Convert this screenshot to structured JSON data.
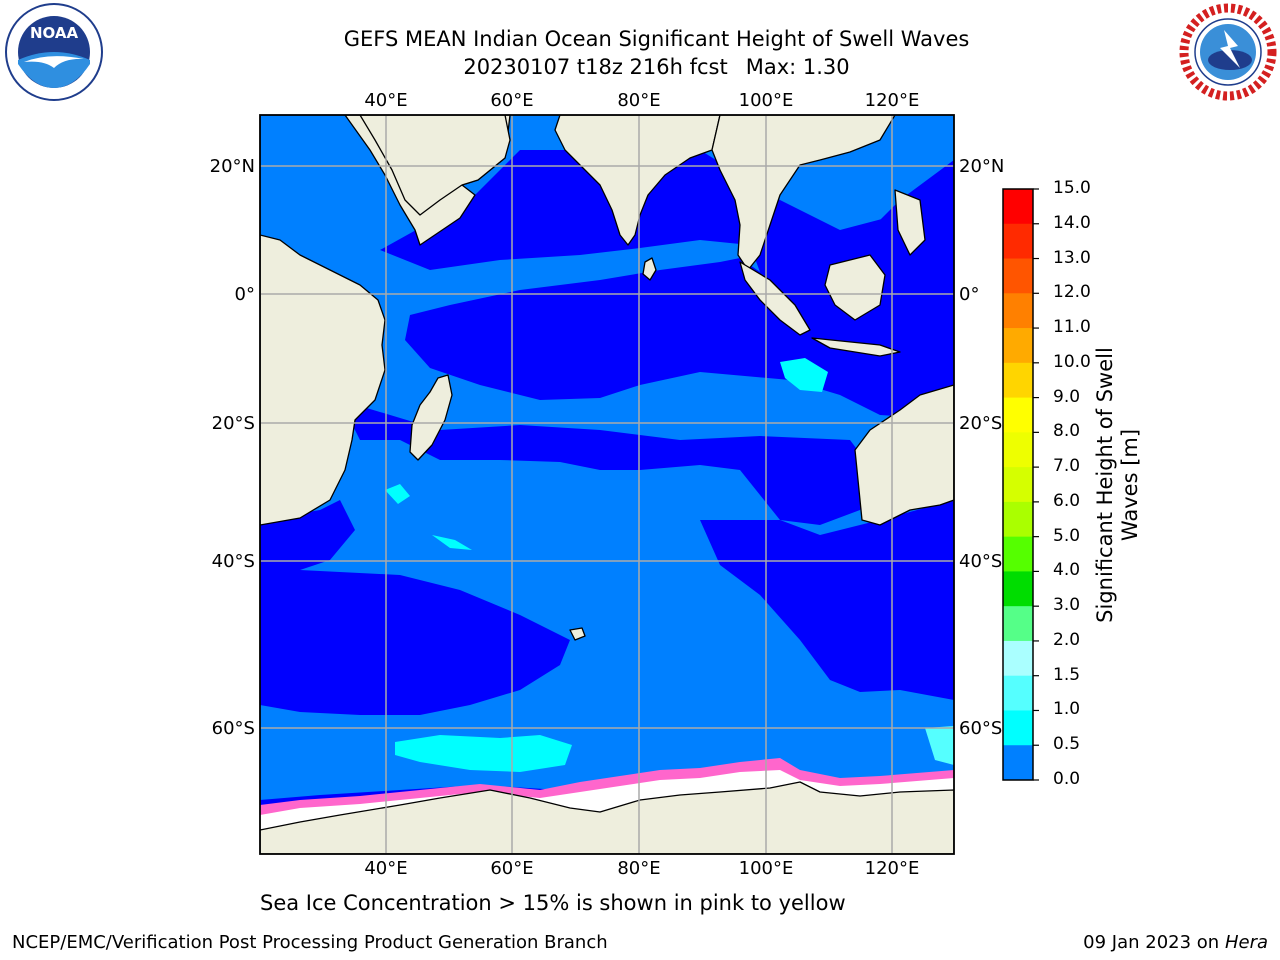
{
  "title": {
    "line1": "GEFS MEAN Indian Ocean Significant Height of Swell Waves",
    "line2": "20230107 t18z 216h fcst",
    "max_label": "Max: 1.30"
  },
  "caption": "Sea Ice Concentration > 15% is shown in pink to yellow",
  "footer": {
    "left": "NCEP/EMC/Verification Post Processing Product Generation Branch",
    "date": "09 Jan 2023 on",
    "host": "Hera"
  },
  "logos": {
    "left": {
      "icon": "noaa-logo",
      "text": "NOAA"
    },
    "right": {
      "icon": "nws-logo"
    }
  },
  "map": {
    "lon_range": [
      20,
      130
    ],
    "lat_range": [
      -77,
      28
    ],
    "lon_ticks": [
      "40°E",
      "60°E",
      "80°E",
      "100°E",
      "120°E"
    ],
    "lat_ticks": [
      "20°N",
      "0°",
      "20°S",
      "40°S",
      "60°S"
    ],
    "grid": true,
    "colors": {
      "land": "#eeeedd",
      "band_0_0_5": "#0000ff",
      "band_0_5_1_0": "#0080ff",
      "band_1_0_1_5": "#00ffff",
      "ice_edge": "#ff66cc",
      "ice": "#ffffff"
    }
  },
  "colorbar": {
    "title": "Significant Height of Swell Waves [m]",
    "ticks": [
      "15.0",
      "14.0",
      "13.0",
      "12.0",
      "11.0",
      "10.0",
      "9.0",
      "8.0",
      "7.0",
      "6.0",
      "5.0",
      "4.0",
      "3.0",
      "2.0",
      "1.5",
      "1.0",
      "0.5",
      "0.0"
    ],
    "colors": [
      "#ff0000",
      "#ff2a00",
      "#ff5500",
      "#ff8000",
      "#ffaa00",
      "#ffd500",
      "#ffff00",
      "#eeff00",
      "#d5ff00",
      "#aaff00",
      "#55ff00",
      "#00dd00",
      "#55ff88",
      "#aaffff",
      "#55ffff",
      "#00ffff",
      "#0080ff",
      "#0000ff"
    ]
  }
}
